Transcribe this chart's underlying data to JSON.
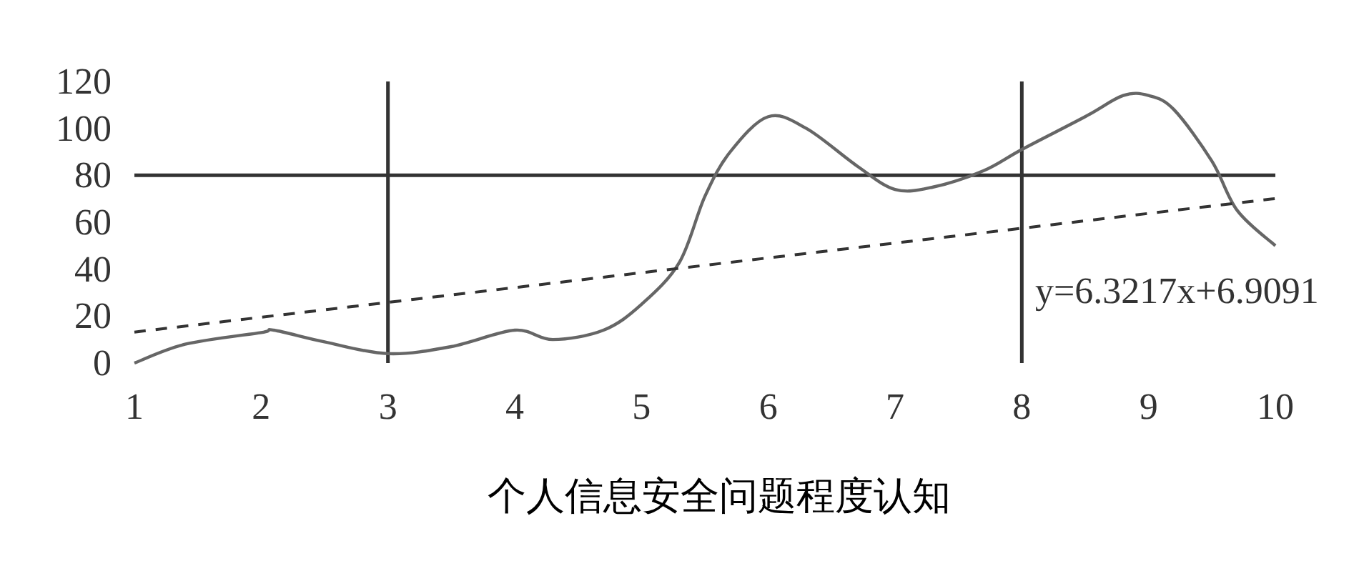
{
  "chart_data": {
    "type": "line",
    "xlabel": "个人信息安全问题程度认知",
    "xlim": [
      1,
      10
    ],
    "ylim": [
      0,
      120
    ],
    "xticks": [
      1,
      2,
      3,
      4,
      5,
      6,
      7,
      8,
      9,
      10
    ],
    "yticks": [
      0,
      20,
      40,
      60,
      80,
      100,
      120
    ],
    "grid": false,
    "marker": "none",
    "series": [
      {
        "color": "#666666",
        "line_style": "solid",
        "x": [
          1,
          1.4,
          2,
          2.1,
          2.5,
          3,
          3.5,
          4,
          4.3,
          4.7,
          5,
          5.3,
          5.5,
          5.7,
          6,
          6.3,
          6.7,
          7,
          7.3,
          7.7,
          8,
          8.5,
          8.8,
          9,
          9.2,
          9.5,
          9.7,
          10
        ],
        "values": [
          0,
          8,
          13,
          14,
          9,
          4,
          7,
          14,
          10,
          14,
          25,
          43,
          71,
          90,
          105,
          100,
          84,
          74,
          75,
          82,
          91,
          105,
          114,
          114,
          108,
          86,
          65,
          50
        ]
      },
      {
        "color": "#333333",
        "line_style": "dashed",
        "x": [
          1,
          10
        ],
        "values": [
          13.2,
          70.1
        ]
      }
    ],
    "ref_lines": [
      {
        "axis": "y",
        "value": 80,
        "color": "#333333"
      },
      {
        "axis": "x",
        "value": 3,
        "color": "#333333"
      },
      {
        "axis": "x",
        "value": 8,
        "color": "#333333"
      }
    ],
    "annotations": [
      "y=6.3217x+6.9091"
    ]
  }
}
